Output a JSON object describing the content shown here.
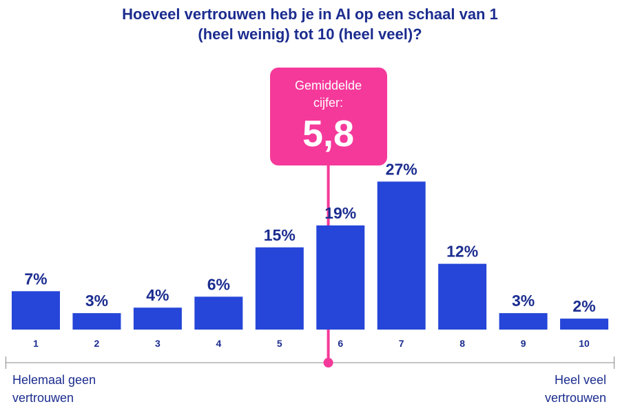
{
  "chart_data": {
    "type": "bar",
    "title": "Hoeveel vertrouwen heb je in AI op een schaal van 1 (heel weinig) tot 10 (heel veel)?",
    "categories": [
      "1",
      "2",
      "3",
      "4",
      "5",
      "6",
      "7",
      "8",
      "9",
      "10"
    ],
    "values": [
      7,
      3,
      4,
      6,
      15,
      19,
      27,
      12,
      3,
      2
    ],
    "value_labels": [
      "7%",
      "3%",
      "4%",
      "6%",
      "15%",
      "19%",
      "27%",
      "12%",
      "3%",
      "2%"
    ],
    "color": "#2546d8",
    "mean": {
      "caption": "Gemiddelde cijfer:",
      "value": 5.8,
      "label": "5,8",
      "color": "#f5399a"
    },
    "axis_low_label": "Helemaal geen vertrouwen",
    "axis_high_label": "Heel veel vertrouwen"
  }
}
